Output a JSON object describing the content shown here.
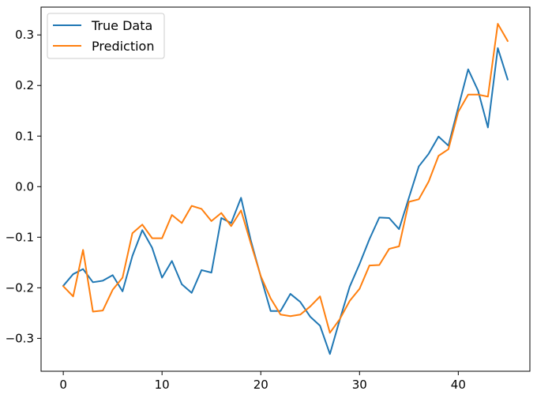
{
  "chart_data": {
    "type": "line",
    "title": "",
    "xlabel": "",
    "ylabel": "",
    "xlim": [
      -2.25,
      47.25
    ],
    "ylim": [
      -0.365,
      0.355
    ],
    "grid": false,
    "legend_position": "top-left",
    "x_ticks": [
      0,
      10,
      20,
      30,
      40
    ],
    "x_tick_labels": [
      "0",
      "10",
      "20",
      "30",
      "40"
    ],
    "y_ticks": [
      -0.3,
      -0.2,
      -0.1,
      0.0,
      0.1,
      0.2,
      0.3
    ],
    "y_tick_labels": [
      "−0.3",
      "−0.2",
      "−0.1",
      "0.0",
      "0.1",
      "0.2",
      "0.3"
    ],
    "x": [
      0,
      1,
      2,
      3,
      4,
      5,
      6,
      7,
      8,
      9,
      10,
      11,
      12,
      13,
      14,
      15,
      16,
      17,
      18,
      19,
      20,
      21,
      22,
      23,
      24,
      25,
      26,
      27,
      28,
      29,
      30,
      31,
      32,
      33,
      34,
      35,
      36,
      37,
      38,
      39,
      40,
      41,
      42,
      43,
      44,
      45
    ],
    "series": [
      {
        "name": "True Data",
        "color": "#1f77b4",
        "values": [
          -0.196,
          -0.173,
          -0.163,
          -0.189,
          -0.186,
          -0.175,
          -0.207,
          -0.137,
          -0.086,
          -0.121,
          -0.18,
          -0.147,
          -0.193,
          -0.21,
          -0.165,
          -0.17,
          -0.062,
          -0.072,
          -0.022,
          -0.107,
          -0.178,
          -0.246,
          -0.246,
          -0.212,
          -0.228,
          -0.257,
          -0.275,
          -0.331,
          -0.263,
          -0.198,
          -0.153,
          -0.104,
          -0.061,
          -0.062,
          -0.084,
          -0.022,
          0.04,
          0.065,
          0.099,
          0.081,
          0.157,
          0.232,
          0.19,
          0.117,
          0.274,
          0.212
        ]
      },
      {
        "name": "Prediction",
        "color": "#ff7f0e",
        "values": [
          -0.197,
          -0.217,
          -0.125,
          -0.247,
          -0.245,
          -0.204,
          -0.18,
          -0.092,
          -0.075,
          -0.102,
          -0.102,
          -0.056,
          -0.072,
          -0.038,
          -0.044,
          -0.068,
          -0.052,
          -0.078,
          -0.047,
          -0.113,
          -0.177,
          -0.221,
          -0.253,
          -0.256,
          -0.253,
          -0.237,
          -0.217,
          -0.289,
          -0.262,
          -0.226,
          -0.202,
          -0.156,
          -0.155,
          -0.123,
          -0.118,
          -0.03,
          -0.025,
          0.01,
          0.061,
          0.074,
          0.148,
          0.182,
          0.182,
          0.178,
          0.322,
          0.288
        ]
      }
    ]
  }
}
